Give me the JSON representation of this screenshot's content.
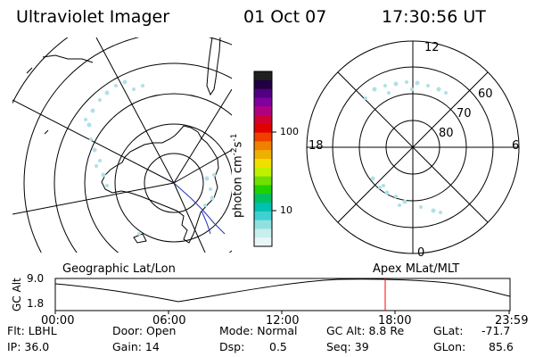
{
  "header": {
    "instrument": "Ultraviolet Imager",
    "date": "01 Oct 07",
    "time": "17:30:56 UT"
  },
  "colorbar": {
    "unit": "photon cm",
    "unit_exp1": "-2",
    "unit_s": "s",
    "unit_exp2": "-1",
    "tick_100": "100",
    "tick_10": "10",
    "colors": [
      "#202020",
      "#200040",
      "#500080",
      "#8000a0",
      "#b00080",
      "#d00030",
      "#e00000",
      "#f04000",
      "#f08000",
      "#f0b000",
      "#f0e000",
      "#c0f000",
      "#70e000",
      "#20d000",
      "#00c060",
      "#00c0b0",
      "#40d0d0",
      "#90e0e0",
      "#c8eeee",
      "#e8f6f6"
    ]
  },
  "mlt_plot": {
    "label_12": "12",
    "label_18": "18",
    "label_6": "6",
    "label_0": "0",
    "lat_60": "60",
    "lat_70": "70",
    "lat_80": "80"
  },
  "timeline": {
    "left_label": "Geographic Lat/Lon",
    "right_label": "Apex MLat/MLT",
    "y_axis_title": "GC Alt",
    "y_max": "9.0",
    "y_min": "1.8",
    "x_ticks": [
      "00:00",
      "06:00",
      "12:00",
      "18:00",
      "23:59"
    ],
    "marker_color": "#ff0000"
  },
  "info": {
    "flt": "Flt: LBHL",
    "ip": "IP: 36.0",
    "door": "Door: Open",
    "gain": "Gain: 14",
    "mode": "Mode: Normal",
    "dsp_label": "Dsp:",
    "dsp_value": "0.5",
    "gcalt": "GC Alt: 8.8 Re",
    "seq": "Seq: 39",
    "glat_label": "GLat:",
    "glat_value": "-71.7",
    "glon_label": "GLon:",
    "glon_value": "85.6"
  }
}
